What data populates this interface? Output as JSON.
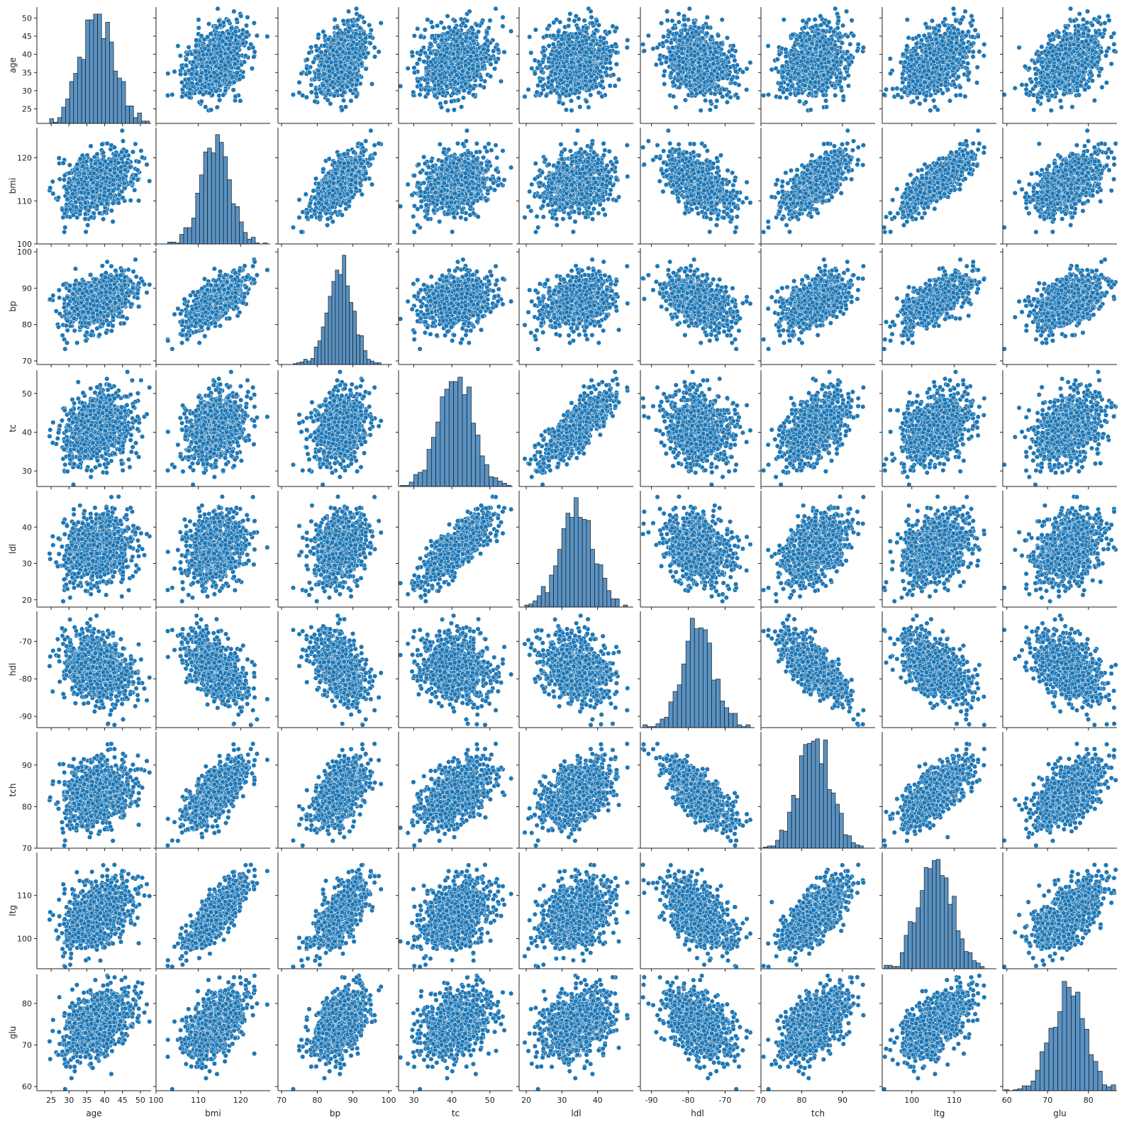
{
  "chart_data": {
    "type": "scatter",
    "kind": "pairplot",
    "variables": [
      "age",
      "bmi",
      "bp",
      "tc",
      "ldl",
      "hdl",
      "tch",
      "ltg",
      "glu"
    ],
    "diagonal": "histogram",
    "n_points": 1000,
    "color": "#1f77b4",
    "hist_color": "#5a93c4",
    "stats": {
      "age": {
        "mean": 38,
        "sd": 4.8,
        "lim": [
          21,
          53
        ],
        "ticks": [
          25,
          30,
          35,
          40,
          45,
          50
        ]
      },
      "bmi": {
        "mean": 114,
        "sd": 3.5,
        "lim": [
          100,
          127
        ],
        "ticks": [
          100,
          110,
          120
        ]
      },
      "bp": {
        "mean": 86.5,
        "sd": 3.8,
        "lim": [
          69,
          101
        ],
        "ticks": [
          70,
          80,
          90,
          100
        ]
      },
      "tc": {
        "mean": 41,
        "sd": 4.5,
        "lim": [
          26,
          56
        ],
        "ticks": [
          30,
          40,
          50
        ]
      },
      "ldl": {
        "mean": 34,
        "sd": 4.8,
        "lim": [
          18,
          50
        ],
        "ticks": [
          20,
          30,
          40
        ]
      },
      "hdl": {
        "mean": -77,
        "sd": 4.3,
        "lim": [
          -93,
          -62
        ],
        "ticks": [
          -90,
          -80,
          -70
        ]
      },
      "tch": {
        "mean": 83,
        "sd": 4.0,
        "lim": [
          70,
          98
        ],
        "ticks": [
          70,
          80,
          90
        ]
      },
      "ltg": {
        "mean": 105.5,
        "sd": 4.0,
        "lim": [
          93,
          120
        ],
        "ticks": [
          100,
          110
        ]
      },
      "glu": {
        "mean": 75,
        "sd": 4.3,
        "lim": [
          59,
          87
        ],
        "ticks": [
          60,
          70,
          80
        ]
      }
    },
    "correlation": [
      [
        1.0,
        0.35,
        0.3,
        0.2,
        0.15,
        -0.28,
        0.18,
        0.38,
        0.42
      ],
      [
        0.35,
        1.0,
        0.68,
        0.3,
        0.25,
        -0.55,
        0.7,
        0.8,
        0.55
      ],
      [
        0.3,
        0.68,
        1.0,
        0.3,
        0.28,
        -0.45,
        0.55,
        0.7,
        0.55
      ],
      [
        0.2,
        0.3,
        0.3,
        1.0,
        0.8,
        -0.15,
        0.5,
        0.4,
        0.35
      ],
      [
        0.15,
        0.25,
        0.28,
        0.8,
        1.0,
        -0.28,
        0.48,
        0.35,
        0.28
      ],
      [
        -0.28,
        -0.55,
        -0.45,
        -0.15,
        -0.28,
        1.0,
        -0.72,
        -0.55,
        -0.45
      ],
      [
        0.18,
        0.7,
        0.55,
        0.5,
        0.48,
        -0.72,
        1.0,
        0.7,
        0.55
      ],
      [
        0.38,
        0.8,
        0.7,
        0.4,
        0.35,
        -0.55,
        0.7,
        1.0,
        0.6
      ],
      [
        0.42,
        0.55,
        0.55,
        0.35,
        0.28,
        -0.45,
        0.55,
        0.6,
        1.0
      ]
    ],
    "hist_bins": 25,
    "xlabels": [
      "age",
      "bmi",
      "bp",
      "tc",
      "ldl",
      "hdl",
      "tch",
      "ltg",
      "glu"
    ],
    "ylabels": [
      "age",
      "bmi",
      "bp",
      "tc",
      "ldl",
      "hdl",
      "tch",
      "ltg",
      "glu"
    ]
  }
}
